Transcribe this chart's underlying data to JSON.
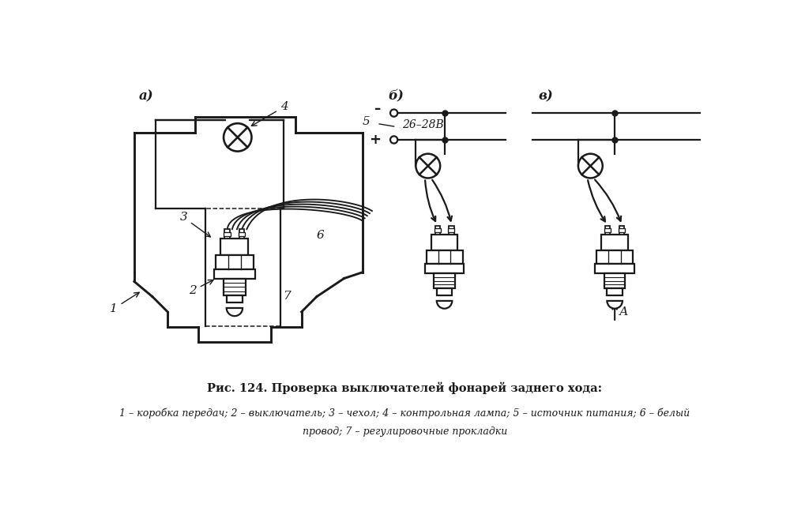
{
  "title": "Рис. 124. Проверка выключателей фонарей заднего хода:",
  "caption_line1": "1 – коробка передач; 2 – выключатель; 3 – чехол; 4 – контрольная лампа; 5 – источник питания; 6 – белый",
  "caption_line2": "провод; 7 – регулировочные прокладки",
  "bg_color": "#ffffff",
  "line_color": "#1a1a1a",
  "label_a": "а)",
  "label_b": "б)",
  "label_v": "в)",
  "num1": "1",
  "num2": "2",
  "num3": "3",
  "num4": "4",
  "num5": "5",
  "num6": "6",
  "num7": "7",
  "voltage": "26–28В",
  "label_A": "А"
}
